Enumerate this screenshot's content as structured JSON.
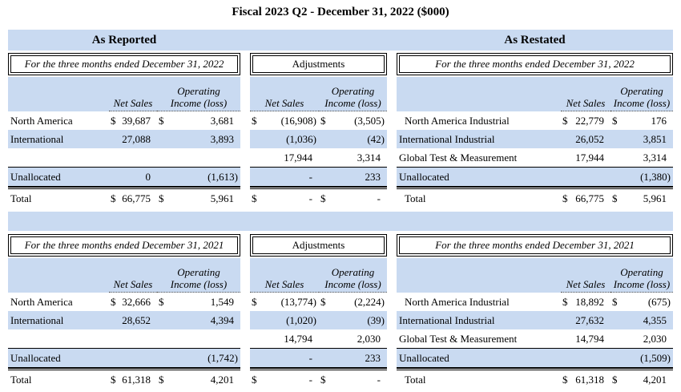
{
  "title": "Fiscal 2023 Q2 - December 31, 2022 ($000)",
  "colors": {
    "stripe_blue": "#c9daf1",
    "border_black": "#000000",
    "background": "#ffffff"
  },
  "band": {
    "as_reported": "As Reported",
    "as_restated": "As Restated"
  },
  "column_headers": {
    "net_sales": "Net Sales",
    "operating_income": "Operating Income (loss)",
    "operating_income_lines": [
      "Operating",
      "Income (loss)"
    ]
  },
  "blocks": [
    {
      "reported_period": "For the three months ended December 31, 2022",
      "adjustments_label": "Adjustments",
      "restated_period": "For the three months ended December 31, 2022",
      "reported": {
        "rows": [
          {
            "label": "North America",
            "ds1": "$",
            "net_sales": "39,687",
            "ds2": "$",
            "op_income": "3,681"
          },
          {
            "label": "International",
            "ds1": "",
            "net_sales": "27,088",
            "ds2": "",
            "op_income": "3,893"
          },
          {
            "label": "",
            "ds1": "",
            "net_sales": "",
            "ds2": "",
            "op_income": ""
          },
          {
            "label": "Unallocated",
            "ds1": "",
            "net_sales": "0",
            "ds2": "",
            "op_income": "(1,613)"
          },
          {
            "label": "Total",
            "ds1": "$",
            "net_sales": "66,775",
            "ds2": "$",
            "op_income": "5,961"
          }
        ]
      },
      "adjustments": {
        "rows": [
          {
            "ds1": "$",
            "net_sales": "(16,908)",
            "ds2": "$",
            "op_income": "(3,505)"
          },
          {
            "ds1": "",
            "net_sales": "(1,036)",
            "ds2": "",
            "op_income": "(42)"
          },
          {
            "ds1": "",
            "net_sales": "17,944",
            "ds2": "",
            "op_income": "3,314"
          },
          {
            "ds1": "",
            "net_sales": "-",
            "ds2": "",
            "op_income": "233"
          },
          {
            "ds1": "$",
            "net_sales": "-",
            "ds2": "$",
            "op_income": "-"
          }
        ]
      },
      "restated": {
        "rows": [
          {
            "label": "North America Industrial",
            "ds1": "$",
            "net_sales": "22,779",
            "ds2": "$",
            "op_income": "176"
          },
          {
            "label": "International Industrial",
            "ds1": "",
            "net_sales": "26,052",
            "ds2": "",
            "op_income": "3,851"
          },
          {
            "label": "Global Test & Measurement",
            "ds1": "",
            "net_sales": "17,944",
            "ds2": "",
            "op_income": "3,314"
          },
          {
            "label": "Unallocated",
            "ds1": "",
            "net_sales": "",
            "ds2": "",
            "op_income": "(1,380)"
          },
          {
            "label": "Total",
            "ds1": "$",
            "net_sales": "66,775",
            "ds2": "$",
            "op_income": "5,961"
          }
        ]
      }
    },
    {
      "reported_period": "For the three months ended December 31, 2021",
      "adjustments_label": "Adjustments",
      "restated_period": "For the three months ended December 31, 2021",
      "reported": {
        "rows": [
          {
            "label": "North America",
            "ds1": "$",
            "net_sales": "32,666",
            "ds2": "$",
            "op_income": "1,549"
          },
          {
            "label": "International",
            "ds1": "",
            "net_sales": "28,652",
            "ds2": "",
            "op_income": "4,394"
          },
          {
            "label": "",
            "ds1": "",
            "net_sales": "",
            "ds2": "",
            "op_income": ""
          },
          {
            "label": "Unallocated",
            "ds1": "",
            "net_sales": "",
            "ds2": "",
            "op_income": "(1,742)"
          },
          {
            "label": "Total",
            "ds1": "$",
            "net_sales": "61,318",
            "ds2": "$",
            "op_income": "4,201"
          }
        ]
      },
      "adjustments": {
        "rows": [
          {
            "ds1": "$",
            "net_sales": "(13,774)",
            "ds2": "$",
            "op_income": "(2,224)"
          },
          {
            "ds1": "",
            "net_sales": "(1,020)",
            "ds2": "",
            "op_income": "(39)"
          },
          {
            "ds1": "",
            "net_sales": "14,794",
            "ds2": "",
            "op_income": "2,030"
          },
          {
            "ds1": "",
            "net_sales": "-",
            "ds2": "",
            "op_income": "233"
          },
          {
            "ds1": "$",
            "net_sales": "-",
            "ds2": "$",
            "op_income": "-"
          }
        ]
      },
      "restated": {
        "rows": [
          {
            "label": "North America Industrial",
            "ds1": "$",
            "net_sales": "18,892",
            "ds2": "$",
            "op_income": "(675)"
          },
          {
            "label": "International Industrial",
            "ds1": "",
            "net_sales": "27,632",
            "ds2": "",
            "op_income": "4,355"
          },
          {
            "label": "Global Test & Measurement",
            "ds1": "",
            "net_sales": "14,794",
            "ds2": "",
            "op_income": "2,030"
          },
          {
            "label": "Unallocated",
            "ds1": "",
            "net_sales": "",
            "ds2": "",
            "op_income": "(1,509)"
          },
          {
            "label": "Total",
            "ds1": "$",
            "net_sales": "61,318",
            "ds2": "$",
            "op_income": "4,201"
          }
        ]
      }
    }
  ]
}
